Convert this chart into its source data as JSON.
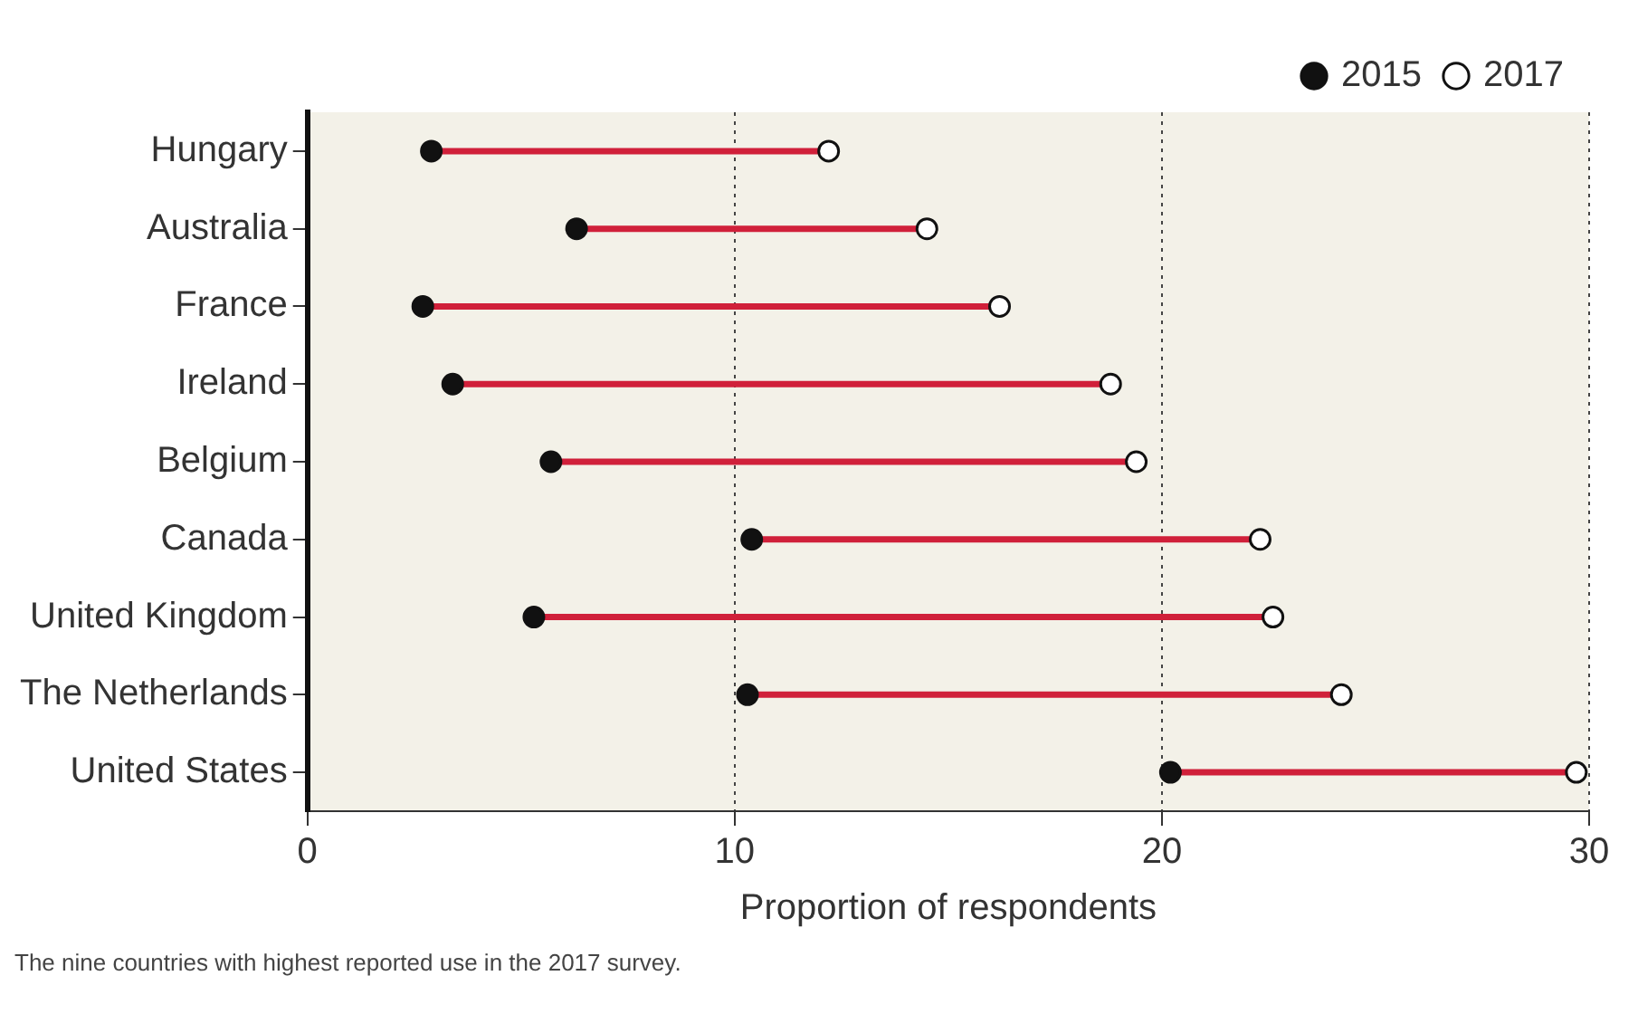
{
  "chart_data": {
    "type": "scatter",
    "orientation": "horizontal",
    "xlabel": "Proportion of respondents",
    "categories": [
      "Hungary",
      "Australia",
      "France",
      "Ireland",
      "Belgium",
      "Canada",
      "United Kingdom",
      "The Netherlands",
      "United States"
    ],
    "series": [
      {
        "name": "2015",
        "color": "#111111",
        "values": [
          2.9,
          6.3,
          2.7,
          3.4,
          5.7,
          10.4,
          5.3,
          10.3,
          20.2
        ]
      },
      {
        "name": "2017",
        "color": "#ffffff",
        "values": [
          12.2,
          14.5,
          16.2,
          18.8,
          19.4,
          22.3,
          22.6,
          24.2,
          29.7
        ]
      }
    ],
    "xlim": [
      0,
      30
    ],
    "xticks": [
      0,
      10,
      20,
      30
    ],
    "grid": "x",
    "legend": "top right",
    "marker": "circle",
    "annotations": [
      "The nine countries with highest reported use in the 2017 survey."
    ]
  }
}
